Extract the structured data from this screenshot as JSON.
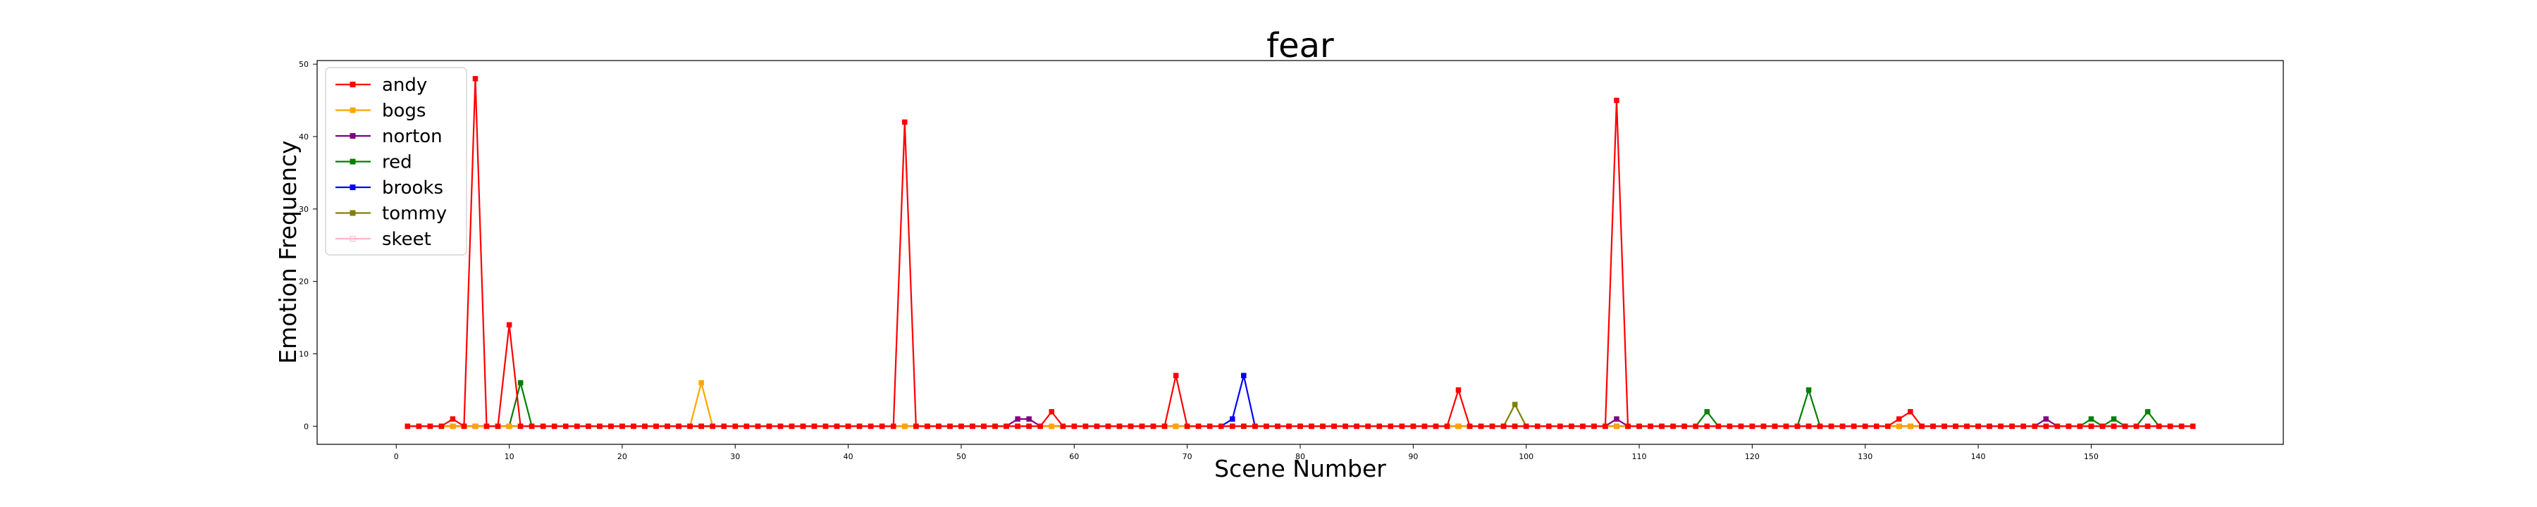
{
  "chart_data": {
    "type": "line",
    "title": "fear",
    "xlabel": "Scene Number",
    "ylabel": "Emotion Frequency",
    "xlim": [
      -7,
      167
    ],
    "ylim": [
      -2.5,
      50.5
    ],
    "xticks": [
      0,
      10,
      20,
      30,
      40,
      50,
      60,
      70,
      80,
      90,
      100,
      110,
      120,
      130,
      140,
      150
    ],
    "yticks": [
      0,
      10,
      20,
      30,
      40,
      50
    ],
    "x_range": [
      1,
      159
    ],
    "legend_position": "upper-left",
    "grid": false,
    "series": [
      {
        "name": "andy",
        "color": "#ff0000",
        "marker": "square",
        "points": [
          [
            5,
            1
          ],
          [
            7,
            48
          ],
          [
            10,
            14
          ],
          [
            45,
            42
          ],
          [
            58,
            2
          ],
          [
            69,
            7
          ],
          [
            94,
            5
          ],
          [
            108,
            45
          ],
          [
            133,
            1
          ],
          [
            134,
            2
          ]
        ]
      },
      {
        "name": "bogs",
        "color": "#ffa500",
        "marker": "square",
        "points": [
          [
            27,
            6
          ]
        ]
      },
      {
        "name": "norton",
        "color": "#800080",
        "marker": "square",
        "points": [
          [
            55,
            1
          ],
          [
            56,
            1
          ],
          [
            108,
            1
          ],
          [
            146,
            1
          ]
        ]
      },
      {
        "name": "red",
        "color": "#008000",
        "marker": "square",
        "points": [
          [
            11,
            6
          ],
          [
            116,
            2
          ],
          [
            125,
            5
          ],
          [
            150,
            1
          ],
          [
            152,
            1
          ],
          [
            155,
            2
          ]
        ]
      },
      {
        "name": "brooks",
        "color": "#0000ff",
        "marker": "square",
        "points": [
          [
            74,
            1
          ],
          [
            75,
            7
          ]
        ]
      },
      {
        "name": "tommy",
        "color": "#808000",
        "marker": "square",
        "points": [
          [
            99,
            3
          ]
        ]
      },
      {
        "name": "skeet",
        "color": "#ffb6c1",
        "marker": "square-open",
        "points": []
      }
    ]
  }
}
